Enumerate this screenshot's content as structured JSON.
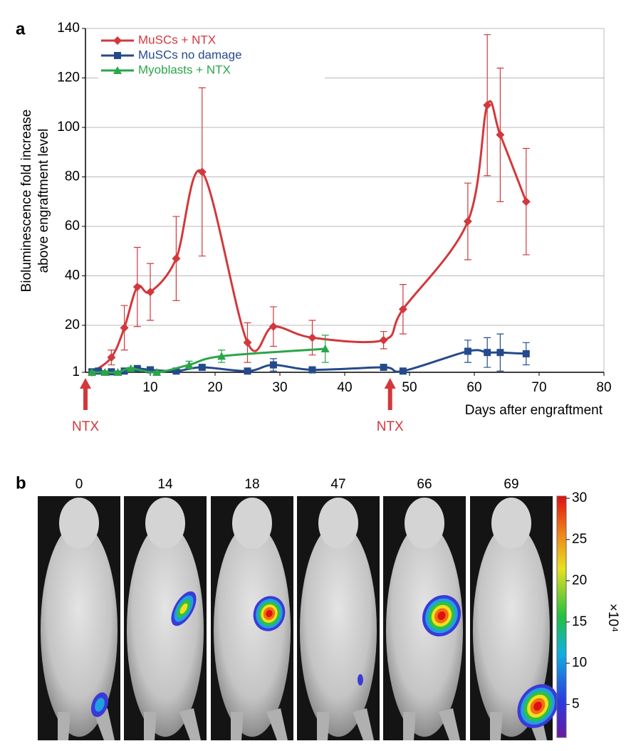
{
  "chart_data": {
    "type": "line",
    "panel_label": "a",
    "y_label": [
      "Bioluminescence fold increase",
      "above engraftment level"
    ],
    "x_label": "Days after engraftment",
    "xlim": [
      0,
      80
    ],
    "xticks": [
      10,
      20,
      30,
      40,
      50,
      60,
      70,
      80
    ],
    "ylim": [
      1,
      140
    ],
    "yticks": [
      1,
      20,
      40,
      60,
      80,
      100,
      120,
      140
    ],
    "grid": true,
    "legend": "upper left",
    "series": [
      {
        "name": "MuSCs + NTX",
        "color": "#d2383c",
        "marker": "diamond",
        "x": [
          1,
          4,
          6,
          8,
          10,
          14,
          18,
          25,
          29,
          35,
          46,
          49,
          59,
          62,
          64,
          68
        ],
        "values": [
          1,
          7,
          19,
          35.5,
          33.5,
          47,
          82,
          13,
          19.5,
          15,
          14,
          26.5,
          62,
          109,
          97,
          70
        ],
        "errors": [
          0.5,
          3,
          9,
          16,
          11.5,
          17,
          34,
          8,
          8,
          7,
          3.5,
          10,
          15.5,
          28.5,
          27,
          21.5
        ]
      },
      {
        "name": "MuSCs no damage",
        "color": "#244a8c",
        "marker": "square",
        "x": [
          1,
          2,
          4,
          6,
          8,
          10,
          14,
          18,
          25,
          29,
          35,
          46,
          49,
          59,
          62,
          64,
          68
        ],
        "values": [
          1.2,
          1.5,
          1.2,
          1.5,
          2.5,
          2,
          1.5,
          3,
          1.5,
          4,
          2,
          3,
          1.5,
          9.5,
          9,
          9,
          8.5
        ],
        "errors": [
          0.5,
          0.5,
          0.5,
          0.5,
          0.5,
          0.5,
          0.5,
          0.5,
          0.5,
          2.5,
          0.5,
          0.5,
          0.5,
          4.5,
          6,
          7.5,
          4.5
        ]
      },
      {
        "name": "Myoblasts + NTX",
        "color": "#2aa64a",
        "marker": "triangle",
        "x": [
          1,
          3,
          5,
          7,
          11,
          16,
          21,
          37
        ],
        "values": [
          1,
          1,
          1,
          2.5,
          1,
          4,
          7.5,
          10.5
        ],
        "errors": [
          0.5,
          0.5,
          0.5,
          0.5,
          0.5,
          1.5,
          2.5,
          5.5
        ]
      }
    ],
    "annotations": [
      {
        "text": "NTX",
        "x": 0
      },
      {
        "text": "NTX",
        "x": 47
      }
    ]
  },
  "panel_b": {
    "label": "b",
    "timepoints": [
      "0",
      "14",
      "18",
      "47",
      "66",
      "69"
    ],
    "colorbar": {
      "lim": [
        1,
        30
      ],
      "ticks": [
        5,
        10,
        15,
        20,
        25,
        30
      ],
      "unit": "×10⁴"
    }
  }
}
